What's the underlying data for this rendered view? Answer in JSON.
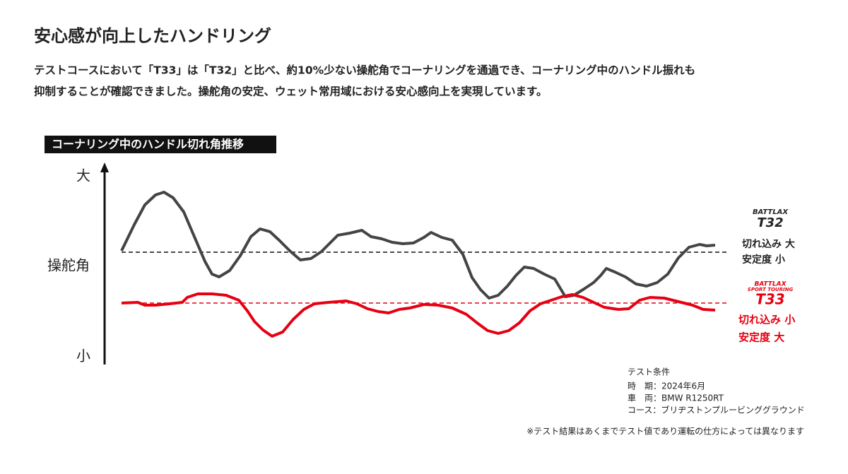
{
  "header": {
    "title": "安心感が向上したハンドリング",
    "lines": [
      "テストコースにおいて「T33」は「T32」と比べ、約10%少ない操舵角でコーナリングを通過でき、コーナリング中のハンドル振れも",
      "抑制することが確認できました。操舵角の安定、ウェット常用域における安心感向上を実現しています。"
    ]
  },
  "chart": {
    "title": "コーナリング中のハンドル切れ角推移",
    "axis_label": "操舵角",
    "axis_top": "大",
    "axis_bottom": "小",
    "legend": [
      {
        "brand": "BATTLAX",
        "model": "T32",
        "notes": [
          "切れ込み 大",
          "安定度 小"
        ]
      },
      {
        "brand": "BATTLAX",
        "sub": "SPORT TOURING",
        "model": "T33",
        "notes": [
          "切れ込み 小",
          "安定度 大"
        ]
      }
    ]
  },
  "conditions": {
    "heading": "テスト条件",
    "rows": [
      "時　期：2024年6月",
      "車　両：BMW R1250RT",
      "コース：ブリヂストンプルービンググラウンド"
    ]
  },
  "footnote": "※テスト結果はあくまでテスト値であり運転の仕方によっては異なります"
}
